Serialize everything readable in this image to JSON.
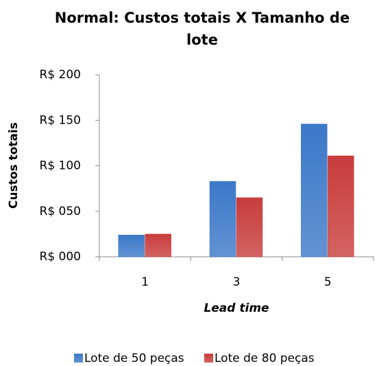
{
  "chart_data": {
    "type": "bar",
    "title": "Normal: Custos totais X Tamanho de lote",
    "x_label": "Lead time",
    "y_label": "Custos totais",
    "categories": [
      "1",
      "3",
      "5"
    ],
    "series": [
      {
        "name": "Lote de 50 peças",
        "color": "#3b78c8",
        "values": [
          24,
          83,
          146
        ]
      },
      {
        "name": "Lote de 80 peças",
        "color": "#c83c3c",
        "values": [
          25,
          65,
          111
        ]
      }
    ],
    "ylim": [
      0,
      200
    ],
    "yticks": [
      {
        "value": 0,
        "label": "R$ 000"
      },
      {
        "value": 50,
        "label": "R$ 050"
      },
      {
        "value": 100,
        "label": "R$ 100"
      },
      {
        "value": 150,
        "label": "R$ 150"
      },
      {
        "value": 200,
        "label": "R$ 200"
      }
    ],
    "grid": false,
    "legend": "bottom"
  }
}
